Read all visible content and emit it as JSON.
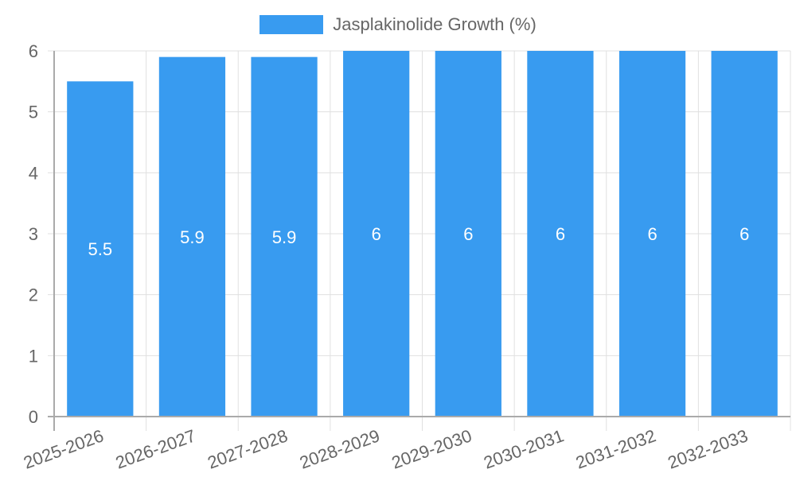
{
  "chart_data": {
    "type": "bar",
    "title": "",
    "xlabel": "",
    "ylabel": "",
    "categories": [
      "2025-2026",
      "2026-2027",
      "2027-2028",
      "2028-2029",
      "2029-2030",
      "2030-2031",
      "2031-2032",
      "2032-2033"
    ],
    "series": [
      {
        "name": "Jasplakinolide Growth (%)",
        "values": [
          5.5,
          5.9,
          5.9,
          6,
          6,
          6,
          6,
          6
        ],
        "color": "#389BF0"
      }
    ],
    "data_labels": [
      "5.5",
      "5.9",
      "5.9",
      "6",
      "6",
      "6",
      "6",
      "6"
    ],
    "ylim": [
      0,
      6
    ],
    "yticks": [
      0,
      1,
      2,
      3,
      4,
      5,
      6
    ],
    "grid": true,
    "legend_position": "top",
    "x_tick_rotation": -20
  },
  "legend": {
    "label": "Jasplakinolide Growth (%)",
    "color": "#389BF0"
  },
  "colors": {
    "bar": "#389BF0",
    "grid": "#e0e0e0",
    "axis": "#aaaaaa",
    "tick_text": "#666666",
    "data_label": "#ffffff"
  }
}
